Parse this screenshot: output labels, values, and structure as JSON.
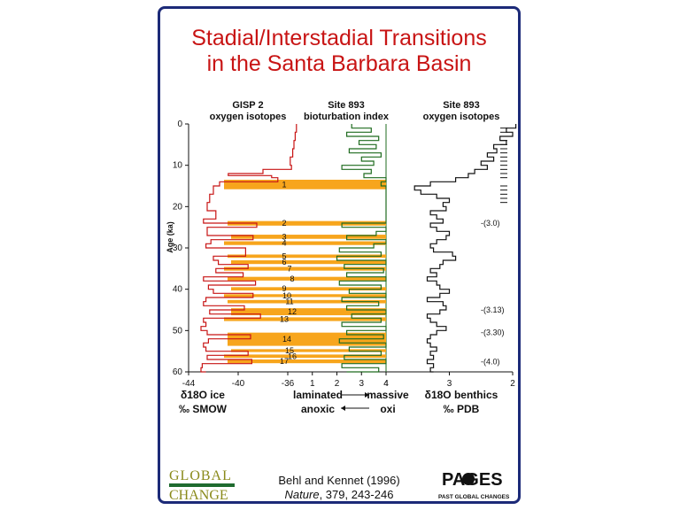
{
  "title_line1": "Stadial/Interstadial Transitions",
  "title_line2": "in the Santa Barbara Basin",
  "columns": {
    "gisp2_header1": "GISP 2",
    "gisp2_header2": "oxygen isotopes",
    "bio_header1": "Site 893",
    "bio_header2": "bioturbation index",
    "benthic_header1": "Site 893",
    "benthic_header2": "oxygen isotopes"
  },
  "axis_labels": {
    "y_label": "Age (ka)",
    "gisp2_x_label1": "δ18O ice",
    "gisp2_x_label2": "‰ SMOW",
    "bio_left_label1": "laminated",
    "bio_left_label2": "anoxic",
    "bio_right_label1": "massive",
    "bio_right_label2": "oxi",
    "benthic_x_label1": "δ18O benthics",
    "benthic_x_label2": "‰ PDB"
  },
  "footer": {
    "citation_line1": "Behl and Kennet (1996)",
    "citation_journal": "Nature",
    "citation_rest": ", 379, 243-246",
    "logo_left_1": "GLOBAL",
    "logo_left_2": "CHANGE",
    "logo_right_1": "PAGES",
    "logo_right_2": "PAST GLOBAL CHANGES"
  },
  "colors": {
    "title": "#c81414",
    "border": "#1c2a78",
    "gisp2_line": "#c81414",
    "bio_line": "#1f6b1f",
    "band_fill": "#f7a51c",
    "benthic_line": "#111111"
  },
  "chart_data": {
    "type": "line",
    "y_axis": {
      "label": "Age (ka)",
      "range": [
        0,
        60
      ],
      "ticks": [
        0,
        10,
        20,
        30,
        40,
        50,
        60
      ],
      "inverted": true
    },
    "panels": [
      {
        "name": "GISP 2 oxygen isotopes",
        "xlim": [
          -44,
          -36
        ],
        "xticks": [
          -44,
          -40,
          -36
        ],
        "series": [
          {
            "color": "#c81414",
            "age": [
              0,
              2,
              4,
              6,
              8,
              10,
              11,
              12,
              12.5,
              13,
              14,
              15,
              17,
              19,
              21,
              23,
              24,
              25,
              27,
              28,
              29,
              30,
              32,
              33,
              34,
              35,
              36,
              37,
              38,
              39,
              40,
              41,
              42,
              43,
              44,
              45,
              46,
              47,
              48,
              49,
              50,
              51,
              52,
              53,
              54,
              55,
              56,
              57,
              58,
              59,
              60
            ],
            "value": [
              -35.3,
              -35.4,
              -35.5,
              -35.6,
              -35.8,
              -35.7,
              -38,
              -40.8,
              -37.3,
              -36.8,
              -41.5,
              -42,
              -42.3,
              -42.5,
              -41.8,
              -42.8,
              -38.5,
              -42.5,
              -38.8,
              -42.2,
              -42.6,
              -39.4,
              -42,
              -41.6,
              -39.2,
              -41.8,
              -39.6,
              -42.8,
              -38.6,
              -42.4,
              -42,
              -38.8,
              -42.6,
              -42.8,
              -39.5,
              -42.3,
              -38.2,
              -42.8,
              -42.6,
              -43,
              -42.5,
              -39,
              -42.4,
              -42.8,
              -42.6,
              -39.2,
              -42.5,
              -38.9,
              -42.9,
              -43,
              -42.6
            ]
          }
        ]
      },
      {
        "name": "Site 893 bioturbation index",
        "xlim": [
          0,
          4
        ],
        "xticks": [
          1,
          2,
          3,
          4
        ],
        "series": [
          {
            "color": "#1f6b1f",
            "age": [
              0,
              1,
              2,
              3,
              4,
              5,
              6,
              7,
              8,
              9,
              10,
              11,
              12,
              13,
              14,
              15,
              17,
              20,
              23,
              24,
              25,
              26,
              27,
              28,
              29,
              30,
              31,
              32,
              33,
              34,
              35,
              36,
              37,
              38,
              39,
              40,
              41,
              42,
              43,
              44,
              45,
              46,
              47,
              48,
              49,
              50,
              51,
              52,
              53,
              54,
              55,
              56,
              57,
              58,
              59,
              60
            ],
            "value": [
              2.6,
              3.4,
              2.4,
              3.7,
              2.9,
              3.6,
              2.5,
              3.8,
              3,
              3.5,
              2.2,
              3.4,
              3.1,
              4,
              3.8,
              4,
              4,
              4,
              4,
              2.2,
              4,
              3.6,
              2.4,
              4,
              3.5,
              2.1,
              3.8,
              2,
              4,
              2.3,
              3.9,
              2.4,
              4,
              2.1,
              3.8,
              2.5,
              4,
              2.2,
              3.7,
              2.4,
              4,
              2.6,
              3.8,
              2.2,
              4,
              2.4,
              3.9,
              2.1,
              4,
              2.5,
              3.8,
              2.3,
              4,
              2.2,
              3.7,
              2.4
            ]
          }
        ],
        "interstadial_bands": [
          {
            "label": "1",
            "age_top": 13.5,
            "age_bottom": 15.8
          },
          {
            "label": "2",
            "age_top": 23.5,
            "age_bottom": 24.6
          },
          {
            "label": "3",
            "age_top": 26.8,
            "age_bottom": 27.8
          },
          {
            "label": "4",
            "age_top": 28.4,
            "age_bottom": 29.3
          },
          {
            "label": "5",
            "age_top": 31.6,
            "age_bottom": 32.4
          },
          {
            "label": "6",
            "age_top": 33,
            "age_bottom": 33.9
          },
          {
            "label": "7",
            "age_top": 34.6,
            "age_bottom": 35.5
          },
          {
            "label": "8",
            "age_top": 37,
            "age_bottom": 37.9
          },
          {
            "label": "9",
            "age_top": 39.5,
            "age_bottom": 40.3
          },
          {
            "label": "10",
            "age_top": 41.2,
            "age_bottom": 41.9
          },
          {
            "label": "11",
            "age_top": 42.6,
            "age_bottom": 43.4
          },
          {
            "label": "12",
            "age_top": 44.6,
            "age_bottom": 46.3
          },
          {
            "label": "13",
            "age_top": 46.8,
            "age_bottom": 47.7
          },
          {
            "label": "14",
            "age_top": 50.5,
            "age_bottom": 53.7
          },
          {
            "label": "15",
            "age_top": 54.5,
            "age_bottom": 55.2
          },
          {
            "label": "16",
            "age_top": 55.8,
            "age_bottom": 56.6
          },
          {
            "label": "17",
            "age_top": 57,
            "age_bottom": 57.9
          }
        ]
      },
      {
        "name": "Site 893 oxygen isotopes",
        "xlim": [
          4,
          2
        ],
        "xticks": [
          4,
          3,
          2
        ],
        "series": [
          {
            "color": "#111111",
            "age": [
              0,
              1,
              2,
              3,
              4,
              5,
              6,
              7,
              8,
              9,
              10,
              11,
              12,
              13,
              14,
              15,
              16,
              17,
              18,
              19,
              20,
              21,
              22,
              23,
              24,
              25,
              26,
              27,
              28,
              29,
              30,
              31,
              32,
              33,
              34,
              35,
              36,
              37,
              38,
              39,
              40,
              41,
              42,
              43,
              44,
              45,
              46,
              47,
              48,
              49,
              50,
              51,
              52,
              53,
              54,
              55,
              56,
              57,
              58,
              59,
              60
            ],
            "value": [
              1.95,
              2.1,
              2.0,
              2.2,
              2.1,
              2.3,
              2.25,
              2.4,
              2.3,
              2.5,
              2.4,
              2.6,
              2.7,
              2.9,
              3.3,
              3.55,
              3.45,
              3.2,
              3.0,
              3.1,
              3.05,
              3.3,
              3.2,
              3.1,
              3.3,
              3.2,
              3.0,
              3.05,
              3.2,
              3.3,
              3.25,
              2.95,
              2.9,
              3.1,
              3.15,
              3.3,
              3.2,
              3.35,
              3.2,
              3.15,
              3.0,
              3.15,
              3.35,
              3.1,
              3.05,
              3.15,
              3.35,
              3.3,
              3.2,
              3.05,
              3.2,
              3.3,
              3.35,
              3.3,
              3.2,
              3.3,
              3.25,
              3.35,
              3.25,
              3.3,
              3.25
            ]
          }
        ],
        "annotations": [
          {
            "label": "-(3.0)",
            "age": 24
          },
          {
            "label": "-(3.13)",
            "age": 45
          },
          {
            "label": "-(3.30)",
            "age": 50.5
          },
          {
            "label": "-(4.0)",
            "age": 57.5
          }
        ]
      }
    ]
  }
}
